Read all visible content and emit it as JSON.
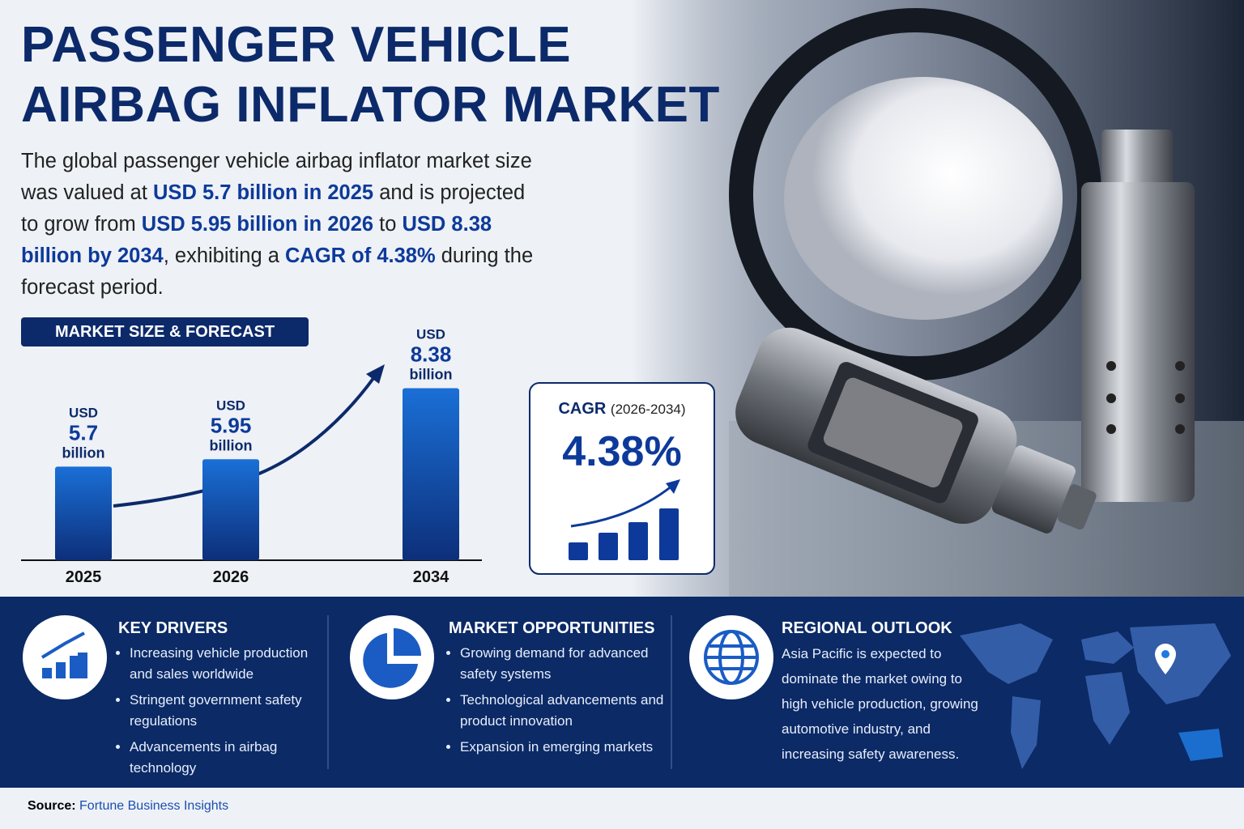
{
  "header": {
    "title_lines": [
      "PASSENGER VEHICLE",
      "AIRBAG INFLATOR MARKET"
    ],
    "description": [
      "The global passenger vehicle airbag inflator market size was valued at ",
      "USD 5.7 billion in 2025",
      " and is projected to grow from ",
      "USD 5.95 billion in 2026",
      " to ",
      "USD 8.38 billion by 2034",
      ", exhibiting a ",
      "CAGR of 4.38%",
      " during the forecast period."
    ]
  },
  "chart_data": {
    "type": "bar",
    "title": "MARKET SIZE & FORECAST",
    "categories": [
      "2025",
      "2026",
      "2034"
    ],
    "values": [
      5.7,
      5.95,
      8.38
    ],
    "unit_prefix": "USD",
    "unit_suffix": "billion",
    "color": "#1a6fd6",
    "ylim": [
      2.5,
      9.5
    ]
  },
  "cagr": {
    "label": "CAGR",
    "period": "(2026-2034)",
    "value": "4.38%"
  },
  "sections": [
    {
      "title": "KEY DRIVERS",
      "items": [
        "Increasing vehicle production and sales worldwide",
        "Stringent government safety regulations",
        "Advancements in airbag technology"
      ]
    },
    {
      "title": "MARKET OPPORTUNITIES",
      "items": [
        "Growing demand for advanced safety systems",
        "Technological advancements and product innovation",
        "Expansion in emerging markets"
      ]
    },
    {
      "title": "REGIONAL OUTLOOK",
      "text": "Asia Pacific is expected to dominate the market owing to high vehicle production, growing automotive industry, and increasing safety awareness."
    }
  ],
  "source": {
    "label": "Source:",
    "name": "Fortune Business Insights"
  }
}
